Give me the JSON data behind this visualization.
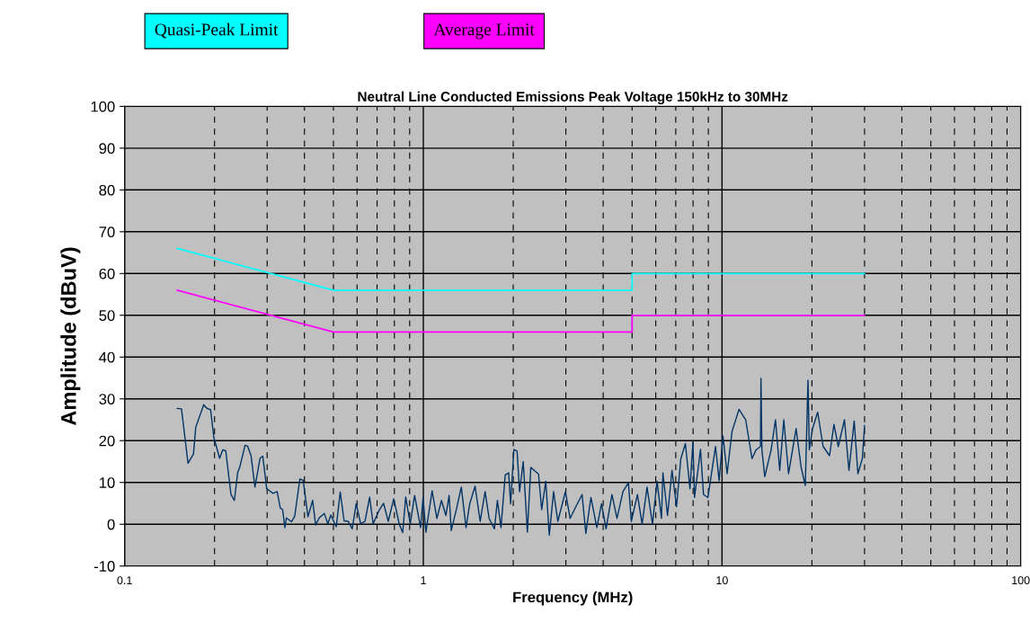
{
  "chart_data": {
    "type": "line",
    "title": "Neutral Line Conducted Emissions Peak Voltage 150kHz to 30MHz",
    "xlabel": "Frequency (MHz)",
    "ylabel": "Amplitude (dBuV)",
    "log": "x",
    "xlim": [
      0.1,
      100
    ],
    "xticks": [
      0.1,
      1,
      10,
      100
    ],
    "ylim": [
      -10,
      100
    ],
    "yticks": [
      -10,
      0,
      10,
      20,
      30,
      40,
      50,
      60,
      70,
      80,
      90,
      100
    ],
    "grid": true,
    "legend": "top",
    "marker": "none",
    "line_style": "solid",
    "series": [
      {
        "name": "Quasi-Peak Limit",
        "color": "#00ffff",
        "x": [
          0.15,
          0.5,
          5,
          5,
          30
        ],
        "values": [
          66,
          56,
          56,
          60,
          60
        ]
      },
      {
        "name": "Average Limit",
        "color": "#ff00ff",
        "x": [
          0.15,
          0.5,
          5,
          5,
          30
        ],
        "values": [
          56,
          46,
          46,
          50,
          50
        ]
      },
      {
        "color": "#003366",
        "x": [
          0.15,
          0.155,
          0.163,
          0.17,
          0.173,
          0.184,
          0.188,
          0.194,
          0.199,
          0.208,
          0.213,
          0.218,
          0.227,
          0.233,
          0.239,
          0.243,
          0.253,
          0.258,
          0.265,
          0.273,
          0.284,
          0.29,
          0.299,
          0.314,
          0.324,
          0.332,
          0.338,
          0.344,
          0.348,
          0.362,
          0.371,
          0.386,
          0.396,
          0.411,
          0.426,
          0.436,
          0.448,
          0.466,
          0.479,
          0.49,
          0.511,
          0.527,
          0.543,
          0.56,
          0.578,
          0.596,
          0.617,
          0.638,
          0.661,
          0.679,
          0.711,
          0.736,
          0.763,
          0.796,
          0.83,
          0.853,
          0.873,
          0.904,
          0.935,
          0.979,
          0.998,
          1.02,
          1.07,
          1.11,
          1.15,
          1.19,
          1.22,
          1.24,
          1.29,
          1.34,
          1.39,
          1.43,
          1.49,
          1.55,
          1.61,
          1.66,
          1.73,
          1.77,
          1.82,
          1.88,
          1.93,
          1.96,
          2.01,
          2.06,
          2.1,
          2.16,
          2.23,
          2.29,
          2.35,
          2.43,
          2.49,
          2.57,
          2.64,
          2.73,
          2.82,
          2.99,
          3.1,
          3.24,
          3.4,
          3.5,
          3.64,
          3.81,
          3.95,
          4.09,
          4.28,
          4.45,
          4.66,
          4.86,
          4.97,
          5.21,
          5.4,
          5.61,
          5.85,
          6.06,
          6.27,
          6.34,
          6.57,
          6.8,
          7.04,
          7.28,
          7.54,
          7.81,
          7.99,
          8.09,
          8.47,
          8.67,
          8.97,
          9.51,
          9.78,
          10.07,
          10.4,
          10.8,
          11.4,
          12.0,
          12.6,
          13.0,
          13.45,
          13.5,
          13.6,
          13.9,
          14.6,
          15.1,
          15.6,
          16.1,
          16.7,
          17.7,
          18.4,
          19.0,
          19.4,
          19.6,
          20.1,
          20.9,
          21.8,
          22.9,
          23.7,
          24.5,
          25.7,
          26.6,
          27.7,
          28.5,
          29.5,
          30.0
        ],
        "values": [
          27.7,
          27.6,
          14.6,
          16.8,
          23.2,
          28.6,
          27.8,
          27.4,
          20.7,
          15.8,
          17.8,
          17.6,
          7.1,
          5.7,
          12.3,
          13.7,
          18.9,
          18.7,
          16.4,
          8.9,
          15.8,
          16.3,
          8.5,
          7.4,
          7.8,
          3.9,
          3.5,
          -0.8,
          1.5,
          0.6,
          1.9,
          10.8,
          10.5,
          1.8,
          5.7,
          -0.2,
          1.5,
          2.6,
          0.1,
          2.2,
          -0.6,
          7.7,
          0.8,
          0.7,
          -1.1,
          4.9,
          0.1,
          0.7,
          6.5,
          0.1,
          3.3,
          5.0,
          0.7,
          6.1,
          0.1,
          -2.0,
          6.5,
          0.1,
          6.9,
          -0.8,
          6.4,
          -1.9,
          8.0,
          1.4,
          5.7,
          2.1,
          6.9,
          -1.5,
          3.5,
          8.9,
          -0.8,
          4.9,
          9.1,
          0.7,
          7.8,
          1.4,
          -1.1,
          5.7,
          -0.8,
          11.8,
          12.3,
          4.9,
          17.9,
          17.5,
          7.8,
          15.0,
          -1.9,
          13.6,
          12.9,
          12.0,
          3.5,
          10.3,
          -2.6,
          7.8,
          0.7,
          7.8,
          1.4,
          4.2,
          7.1,
          -2.2,
          6.4,
          -0.8,
          4.9,
          -1.1,
          7.1,
          1.4,
          7.8,
          9.9,
          0.7,
          7.1,
          0.0,
          8.9,
          0.0,
          10.3,
          1.4,
          12.3,
          2.1,
          12.9,
          4.2,
          15.7,
          19.3,
          8.5,
          19.6,
          6.4,
          17.9,
          7.1,
          6.4,
          18.6,
          10.4,
          21.1,
          12.1,
          22.2,
          27.5,
          25.0,
          15.7,
          17.8,
          18.6,
          34.9,
          17.8,
          11.4,
          17.8,
          25.0,
          12.9,
          25.0,
          12.1,
          22.9,
          13.6,
          9.3,
          34.5,
          17.8,
          22.9,
          26.8,
          18.6,
          16.4,
          23.9,
          18.6,
          25.0,
          12.9,
          24.7,
          12.1,
          15.7,
          23.6
        ]
      }
    ]
  }
}
